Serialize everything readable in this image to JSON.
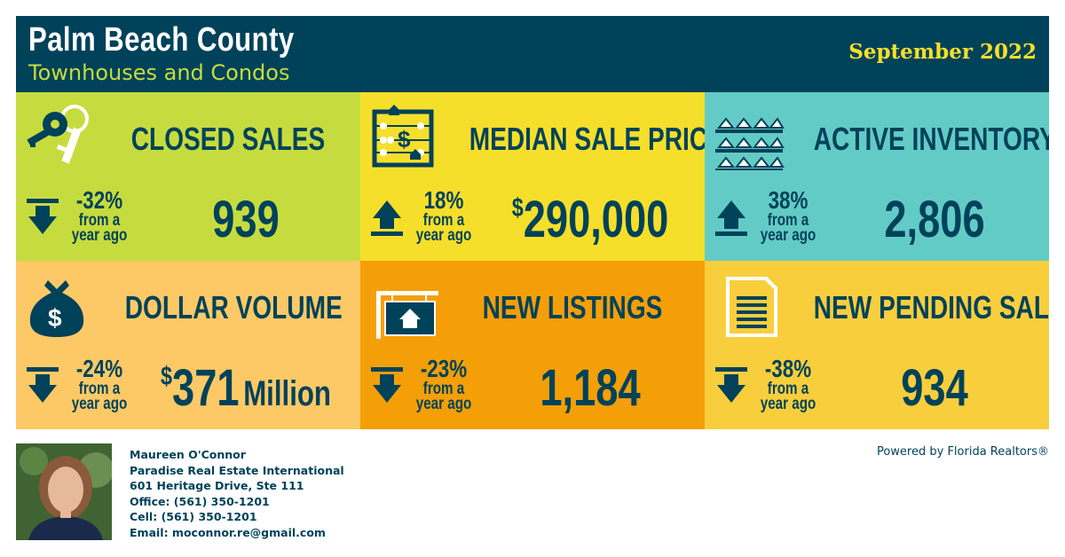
{
  "header": {
    "title": "Palm Beach County",
    "subtitle": "Townhouses and Condos",
    "month": "September 2022"
  },
  "tiles": [
    {
      "label": "CLOSED SALES",
      "direction": "down",
      "pct": "-32%",
      "sub1": "from a",
      "sub2": "year ago",
      "prefix": "",
      "value": "939",
      "unit": "",
      "color": "#c6dc3e",
      "icon": "keys-icon"
    },
    {
      "label": "MEDIAN SALE PRICE",
      "direction": "up",
      "pct": "18%",
      "sub1": "from a",
      "sub2": "year ago",
      "prefix": "$",
      "value": "290,000",
      "unit": "",
      "color": "#f6df2a",
      "icon": "abacus-icon"
    },
    {
      "label": "ACTIVE INVENTORY",
      "direction": "up",
      "pct": "38%",
      "sub1": "from a",
      "sub2": "year ago",
      "prefix": "",
      "value": "2,806",
      "unit": "",
      "color": "#63cbc6",
      "icon": "houses-shelf-icon"
    },
    {
      "label": "DOLLAR VOLUME",
      "direction": "down",
      "pct": "-24%",
      "sub1": "from a",
      "sub2": "year ago",
      "prefix": "$",
      "value": "371",
      "unit": "Million",
      "color": "#fdc966",
      "icon": "money-bag-icon"
    },
    {
      "label": "NEW LISTINGS",
      "direction": "down",
      "pct": "-23%",
      "sub1": "from a",
      "sub2": "year ago",
      "prefix": "",
      "value": "1,184",
      "unit": "",
      "color": "#f49f07",
      "icon": "listing-sign-icon"
    },
    {
      "label": "NEW PENDING SALES",
      "direction": "down",
      "pct": "-38%",
      "sub1": "from a",
      "sub2": "year ago",
      "prefix": "",
      "value": "934",
      "unit": "",
      "color": "#f9ce3d",
      "icon": "document-icon"
    }
  ],
  "agent": {
    "name": "Maureen O'Connor",
    "company": "Paradise Real Estate International",
    "address": "601 Heritage Drive, Ste 111",
    "office": "Office: (561) 350-1201",
    "cell": "Cell: (561) 350-1201",
    "email": "Email: moconnor.re@gmail.com"
  },
  "powered_by": "Powered by Florida Realtors®",
  "colors": {
    "navy": "#00425a",
    "lime": "#c6dc3e",
    "yellow": "#f6df2a"
  }
}
